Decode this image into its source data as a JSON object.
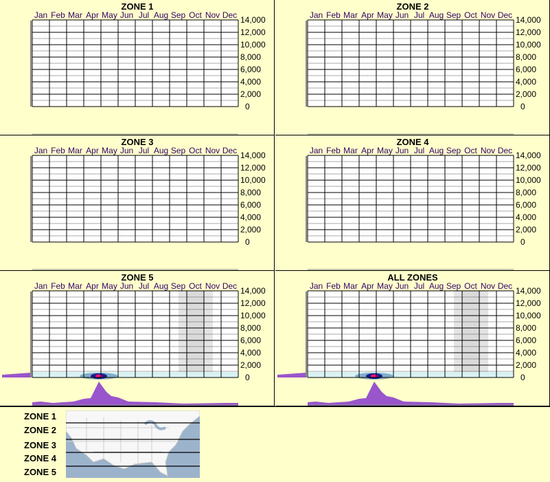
{
  "chart_data": [
    {
      "type": "area",
      "title": "ZONE 1",
      "categories": [
        "Jan",
        "Feb",
        "Mar",
        "Apr",
        "May",
        "Jun",
        "Jul",
        "Aug",
        "Sep",
        "Oct",
        "Nov",
        "Dec"
      ],
      "yticks": [
        "14,000",
        "12,000",
        "10,000",
        "8,000",
        "6,000",
        "4,000",
        "2,000",
        "0"
      ],
      "ylim": [
        0,
        14000
      ],
      "grid": true
    },
    {
      "type": "area",
      "title": "ZONE 2",
      "categories": [
        "Jan",
        "Feb",
        "Mar",
        "Apr",
        "May",
        "Jun",
        "Jul",
        "Aug",
        "Sep",
        "Oct",
        "Nov",
        "Dec"
      ],
      "yticks": [
        "14,000",
        "12,000",
        "10,000",
        "8,000",
        "6,000",
        "4,000",
        "2,000",
        "0"
      ],
      "ylim": [
        0,
        14000
      ],
      "grid": true
    },
    {
      "type": "area",
      "title": "ZONE 3",
      "categories": [
        "Jan",
        "Feb",
        "Mar",
        "Apr",
        "May",
        "Jun",
        "Jul",
        "Aug",
        "Sep",
        "Oct",
        "Nov",
        "Dec"
      ],
      "yticks": [
        "14,000",
        "12,000",
        "10,000",
        "8,000",
        "6,000",
        "4,000",
        "2,000",
        "0"
      ],
      "ylim": [
        0,
        14000
      ],
      "grid": true
    },
    {
      "type": "area",
      "title": "ZONE 4",
      "categories": [
        "Jan",
        "Feb",
        "Mar",
        "Apr",
        "May",
        "Jun",
        "Jul",
        "Aug",
        "Sep",
        "Oct",
        "Nov",
        "Dec"
      ],
      "yticks": [
        "14,000",
        "12,000",
        "10,000",
        "8,000",
        "6,000",
        "4,000",
        "2,000",
        "0"
      ],
      "ylim": [
        0,
        14000
      ],
      "grid": true
    },
    {
      "type": "area",
      "title": "ZONE 5",
      "categories": [
        "Jan",
        "Feb",
        "Mar",
        "Apr",
        "May",
        "Jun",
        "Jul",
        "Aug",
        "Sep",
        "Oct",
        "Nov",
        "Dec"
      ],
      "yticks": [
        "14,000",
        "12,000",
        "10,000",
        "8,000",
        "6,000",
        "4,000",
        "2,000",
        "0"
      ],
      "ylim": [
        0,
        14000
      ],
      "grid": true,
      "highlight": true
    },
    {
      "type": "area",
      "title": "ALL ZONES",
      "categories": [
        "Jan",
        "Feb",
        "Mar",
        "Apr",
        "May",
        "Jun",
        "Jul",
        "Aug",
        "Sep",
        "Oct",
        "Nov",
        "Dec"
      ],
      "yticks": [
        "14,000",
        "12,000",
        "10,000",
        "8,000",
        "6,000",
        "4,000",
        "2,000",
        "0"
      ],
      "ylim": [
        0,
        14000
      ],
      "grid": true,
      "highlight": true
    }
  ],
  "legend": {
    "zones": [
      "ZONE 1",
      "ZONE 2",
      "ZONE 3",
      "ZONE 4",
      "ZONE 5"
    ]
  },
  "colors": {
    "background": "#ffffcc",
    "profile": "#9955cc",
    "shade": "#e4e4e4"
  }
}
